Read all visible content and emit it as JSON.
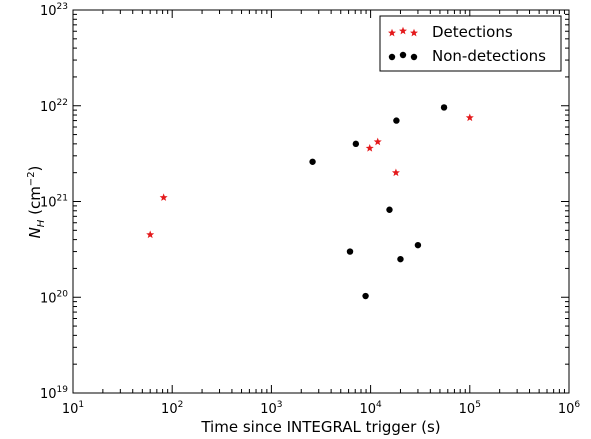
{
  "chart_data": {
    "type": "scatter",
    "xscale": "log",
    "yscale": "log",
    "xlim": [
      10,
      1000000
    ],
    "ylim": [
      1e+19,
      1e+23
    ],
    "xlabel": "Time since INTEGRAL trigger (s)",
    "ylabel": {
      "main": "N",
      "sub": "H",
      "unit_prefix": " (cm",
      "unit_exp": "−2",
      "unit_suffix": ")"
    },
    "x_ticks": [
      {
        "value": 10,
        "base": "10",
        "exp": "1"
      },
      {
        "value": 100,
        "base": "10",
        "exp": "2"
      },
      {
        "value": 1000,
        "base": "10",
        "exp": "3"
      },
      {
        "value": 10000,
        "base": "10",
        "exp": "4"
      },
      {
        "value": 100000,
        "base": "10",
        "exp": "5"
      },
      {
        "value": 1000000,
        "base": "10",
        "exp": "6"
      }
    ],
    "y_ticks": [
      {
        "value": 1e+19,
        "base": "10",
        "exp": "19"
      },
      {
        "value": 1e+20,
        "base": "10",
        "exp": "20"
      },
      {
        "value": 1e+21,
        "base": "10",
        "exp": "21"
      },
      {
        "value": 1e+22,
        "base": "10",
        "exp": "22"
      },
      {
        "value": 1e+23,
        "base": "10",
        "exp": "23"
      }
    ],
    "grid": false,
    "legend_position": "top-right",
    "series": [
      {
        "name": "Detections",
        "marker": "star",
        "color": "#e41a1c",
        "points": [
          {
            "x": 60,
            "y": 4.5e+20
          },
          {
            "x": 82,
            "y": 1.1e+21
          },
          {
            "x": 9800,
            "y": 3.6e+21
          },
          {
            "x": 11800,
            "y": 4.2e+21
          },
          {
            "x": 18000,
            "y": 2e+21
          },
          {
            "x": 100000,
            "y": 7.5e+21
          }
        ]
      },
      {
        "name": "Non-detections",
        "marker": "circle",
        "color": "#000000",
        "points": [
          {
            "x": 2600,
            "y": 2.6e+21
          },
          {
            "x": 6200,
            "y": 3e+20
          },
          {
            "x": 7100,
            "y": 4e+21
          },
          {
            "x": 8900,
            "y": 1.03e+20
          },
          {
            "x": 15500,
            "y": 8.2e+20
          },
          {
            "x": 18200,
            "y": 7e+21
          },
          {
            "x": 20000,
            "y": 2.5e+20
          },
          {
            "x": 30000,
            "y": 3.5e+20
          },
          {
            "x": 55000,
            "y": 9.6e+21
          }
        ]
      }
    ]
  }
}
